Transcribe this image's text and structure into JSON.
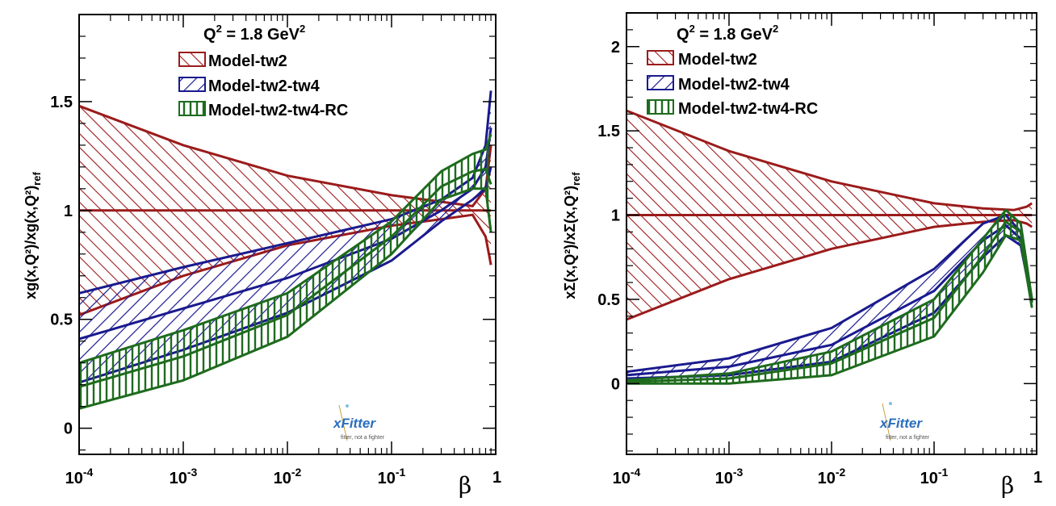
{
  "chart_data": [
    {
      "type": "area",
      "ylabel": "xg(x,Q²)/xg(x,Q²)",
      "ylabel_sub": "ref",
      "xlabel": "β",
      "x_axis_end_label": "1",
      "xscale": "log",
      "xlim": [
        0.0001,
        1
      ],
      "ylim": [
        -0.12,
        1.9
      ],
      "yticks": [
        0,
        0.5,
        1,
        1.5
      ],
      "ytick_labels": [
        "0",
        "0.5",
        "1",
        "1.5"
      ],
      "xtick_labels": [
        {
          "base": "10",
          "exp": "-4"
        },
        {
          "base": "10",
          "exp": "-3"
        },
        {
          "base": "10",
          "exp": "-2"
        },
        {
          "base": "10",
          "exp": "-1"
        }
      ],
      "legend_title": {
        "text": "Q",
        "sup": "2",
        "mid": " = 1.8 GeV",
        "sup2": "2"
      },
      "legend_position": "top",
      "logo": {
        "name": "xFitter",
        "tagline": "fitter, not a fighter"
      },
      "series": [
        {
          "name": "Model-tw2",
          "color": "#9b1b1b",
          "x": [
            0.0001,
            0.001,
            0.01,
            0.1,
            0.3,
            0.6,
            0.8,
            0.9
          ],
          "upper": [
            1.48,
            1.3,
            1.16,
            1.07,
            1.04,
            1.02,
            1.1,
            1.3
          ],
          "lower": [
            0.52,
            0.7,
            0.84,
            0.93,
            0.96,
            0.98,
            0.88,
            0.75
          ],
          "central": [
            1,
            1,
            1,
            1,
            1,
            1,
            1,
            1
          ]
        },
        {
          "name": "Model-tw2-tw4",
          "color": "#1a1a8f",
          "x": [
            0.0001,
            0.001,
            0.01,
            0.1,
            0.3,
            0.6,
            0.8,
            0.9
          ],
          "upper": [
            0.62,
            0.74,
            0.85,
            0.96,
            1.05,
            1.15,
            1.3,
            1.55
          ],
          "lower": [
            0.21,
            0.36,
            0.53,
            0.77,
            0.95,
            1.05,
            1.1,
            1.2
          ],
          "central": [
            0.41,
            0.55,
            0.69,
            0.87,
            1.0,
            1.1,
            1.2,
            1.38
          ]
        },
        {
          "name": "Model-tw2-tw4-RC",
          "color": "#1e6b1e",
          "x": [
            0.0001,
            0.001,
            0.01,
            0.1,
            0.3,
            0.6,
            0.8,
            0.9
          ],
          "upper": [
            0.3,
            0.45,
            0.62,
            0.95,
            1.18,
            1.26,
            1.28,
            1.35
          ],
          "lower": [
            0.09,
            0.22,
            0.42,
            0.8,
            1.05,
            1.1,
            1.1,
            0.9
          ],
          "central": [
            0.19,
            0.33,
            0.52,
            0.88,
            1.11,
            1.18,
            1.19,
            1.12
          ]
        }
      ]
    },
    {
      "type": "area",
      "ylabel": "xΣ(x,Q²)/xΣ(x,Q²)",
      "ylabel_sub": "ref",
      "xlabel": "β",
      "x_axis_end_label": "1",
      "xscale": "log",
      "xlim": [
        0.0001,
        1
      ],
      "ylim": [
        -0.42,
        2.2
      ],
      "yticks": [
        0,
        0.5,
        1,
        1.5,
        2
      ],
      "ytick_labels": [
        "0",
        "0.5",
        "1",
        "1.5",
        "2"
      ],
      "xtick_labels": [
        {
          "base": "10",
          "exp": "-4"
        },
        {
          "base": "10",
          "exp": "-3"
        },
        {
          "base": "10",
          "exp": "-2"
        },
        {
          "base": "10",
          "exp": "-1"
        }
      ],
      "legend_title": {
        "text": "Q",
        "sup": "2",
        "mid": " = 1.8 GeV",
        "sup2": "2"
      },
      "legend_position": "top",
      "logo": {
        "name": "xFitter",
        "tagline": "fitter, not a fighter"
      },
      "series": [
        {
          "name": "Model-tw2",
          "color": "#9b1b1b",
          "x": [
            0.0001,
            0.001,
            0.01,
            0.1,
            0.3,
            0.6,
            0.8,
            0.9
          ],
          "upper": [
            1.62,
            1.38,
            1.2,
            1.07,
            1.04,
            1.03,
            1.05,
            1.07
          ],
          "lower": [
            0.38,
            0.62,
            0.8,
            0.93,
            0.96,
            0.97,
            0.95,
            0.93
          ],
          "central": [
            1,
            1,
            1,
            1,
            1,
            1,
            1,
            1
          ]
        },
        {
          "name": "Model-tw2-tw4",
          "color": "#1a1a8f",
          "x": [
            0.0001,
            0.001,
            0.01,
            0.1,
            0.3,
            0.5,
            0.7,
            0.9
          ],
          "upper": [
            0.07,
            0.15,
            0.33,
            0.68,
            0.95,
            1.0,
            0.9,
            0.5
          ],
          "lower": [
            0.03,
            0.05,
            0.13,
            0.42,
            0.75,
            0.88,
            0.82,
            0.48
          ],
          "central": [
            0.05,
            0.1,
            0.23,
            0.55,
            0.85,
            0.94,
            0.86,
            0.49
          ]
        },
        {
          "name": "Model-tw2-tw4-RC",
          "color": "#1e6b1e",
          "x": [
            0.0001,
            0.001,
            0.01,
            0.1,
            0.3,
            0.5,
            0.7,
            0.9
          ],
          "upper": [
            0.02,
            0.06,
            0.19,
            0.5,
            0.86,
            1.03,
            0.95,
            0.5
          ],
          "lower": [
            0.0,
            0.0,
            0.05,
            0.28,
            0.66,
            0.88,
            0.85,
            0.45
          ],
          "central": [
            0.01,
            0.03,
            0.12,
            0.39,
            0.76,
            0.96,
            0.9,
            0.48
          ]
        }
      ]
    }
  ]
}
